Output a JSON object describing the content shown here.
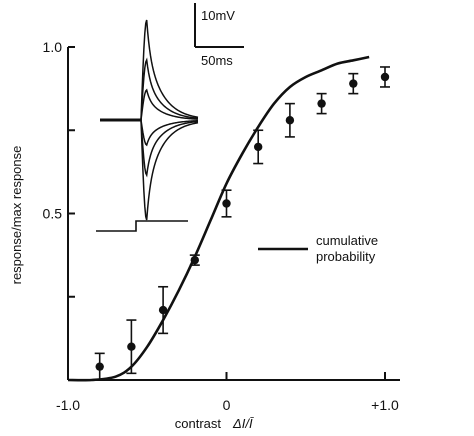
{
  "chart_data": {
    "type": "scatter",
    "title": "",
    "xlabel": "contrast",
    "xlabel_formula": "ΔI/Ī",
    "ylabel": "response/max response",
    "xlim": [
      -1.0,
      1.0
    ],
    "ylim": [
      0.0,
      1.0
    ],
    "x_ticks": [
      {
        "value": -1.0,
        "label": "-1.0"
      },
      {
        "value": 0.0,
        "label": "0"
      },
      {
        "value": 1.0,
        "label": "+1.0"
      }
    ],
    "y_ticks": [
      {
        "value": 0.5,
        "label": "0.5"
      },
      {
        "value": 1.0,
        "label": "1.0"
      }
    ],
    "y_minor_ticks": [
      0.25,
      0.75
    ],
    "grid": false,
    "legend_position": "right",
    "series": [
      {
        "kind": "points_with_errorbars",
        "color": "#111111",
        "points": [
          {
            "x": -0.8,
            "y": 0.04,
            "err": 0.04
          },
          {
            "x": -0.6,
            "y": 0.1,
            "err": 0.08
          },
          {
            "x": -0.4,
            "y": 0.21,
            "err": 0.07
          },
          {
            "x": -0.2,
            "y": 0.36,
            "err": 0.015
          },
          {
            "x": 0.0,
            "y": 0.53,
            "err": 0.04
          },
          {
            "x": 0.2,
            "y": 0.7,
            "err": 0.05
          },
          {
            "x": 0.4,
            "y": 0.78,
            "err": 0.05
          },
          {
            "x": 0.6,
            "y": 0.83,
            "err": 0.03
          },
          {
            "x": 0.8,
            "y": 0.89,
            "err": 0.03
          },
          {
            "x": 1.0,
            "y": 0.91,
            "err": 0.03
          }
        ]
      },
      {
        "name": "cumulative probability",
        "kind": "line",
        "color": "#111111",
        "x": [
          -1.0,
          -0.85,
          -0.7,
          -0.6,
          -0.5,
          -0.4,
          -0.3,
          -0.2,
          -0.1,
          0.0,
          0.1,
          0.2,
          0.3,
          0.4,
          0.5,
          0.6,
          0.7,
          0.8,
          0.9
        ],
        "y": [
          0.0,
          0.0,
          0.01,
          0.04,
          0.1,
          0.18,
          0.27,
          0.37,
          0.48,
          0.59,
          0.68,
          0.76,
          0.83,
          0.88,
          0.91,
          0.93,
          0.95,
          0.96,
          0.97
        ]
      }
    ],
    "inset": {
      "description_type": "voltage traces",
      "scale_bar_voltage": "10mV",
      "scale_bar_time": "50ms",
      "trace_amplitudes": [
        1.0,
        0.6,
        0.3,
        -0.25,
        -0.55,
        -1.0
      ]
    }
  }
}
